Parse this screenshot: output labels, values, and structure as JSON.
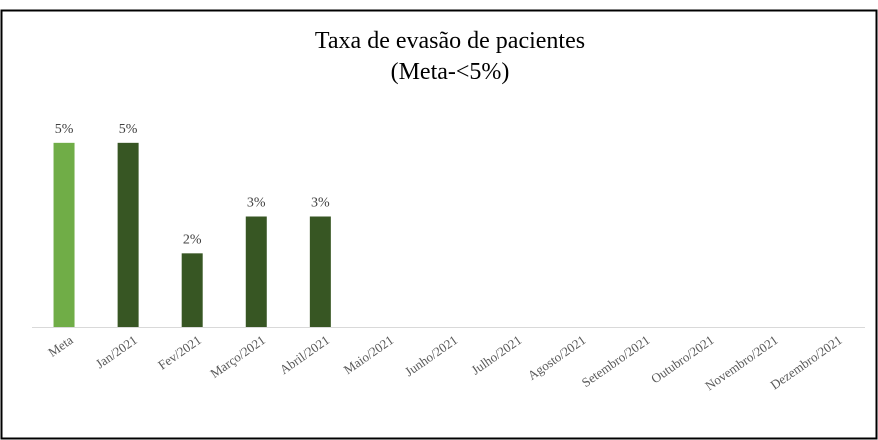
{
  "chart_data": {
    "type": "bar",
    "title": [
      "Taxa de evasão de pacientes",
      "(Meta-<5%)"
    ],
    "categories": [
      "Meta",
      "Jan/2021",
      "Fev/2021",
      "Março/2021",
      "Abril/2021",
      "Maio/2021",
      "Junho/2021",
      "Julho/2021",
      "Agosto/2021",
      "Setembro/2021",
      "Outubro/2021",
      "Novembro/2021",
      "Dezembro/2021"
    ],
    "values": [
      5,
      5,
      2,
      3,
      3,
      null,
      null,
      null,
      null,
      null,
      null,
      null,
      null
    ],
    "value_labels": [
      "5%",
      "5%",
      "2%",
      "3%",
      "3%",
      null,
      null,
      null,
      null,
      null,
      null,
      null,
      null
    ],
    "colors": [
      "#70ad47",
      "#375623",
      "#375623",
      "#375623",
      "#375623",
      "#375623",
      "#375623",
      "#375623",
      "#375623",
      "#375623",
      "#375623",
      "#375623",
      "#375623"
    ],
    "ylim": [
      0,
      6
    ]
  }
}
